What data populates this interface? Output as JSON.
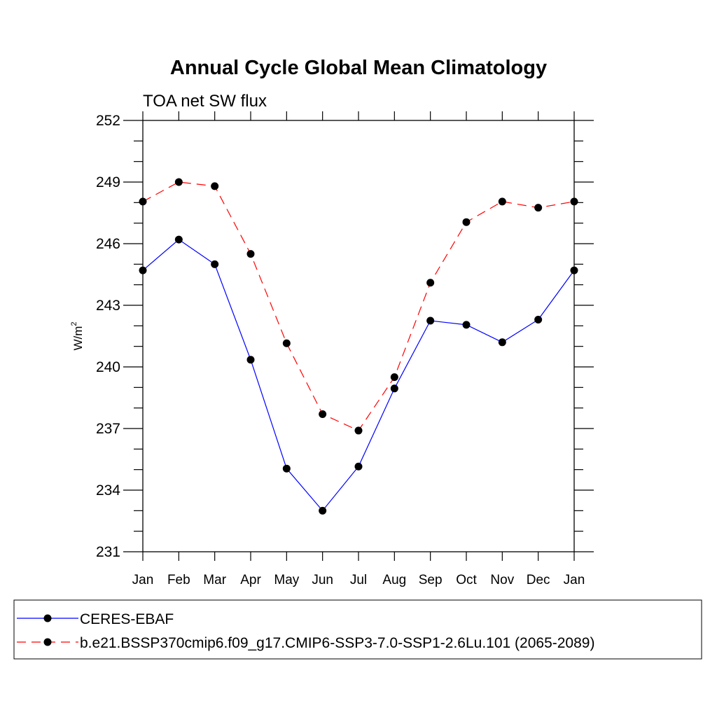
{
  "chart_data": {
    "type": "line",
    "title": "Annual Cycle Global Mean Climatology",
    "subtitle": "TOA net SW flux",
    "ylabel_base": "W/m",
    "ylabel_sup": "2",
    "xlabel": "",
    "categories": [
      "Jan",
      "Feb",
      "Mar",
      "Apr",
      "May",
      "Jun",
      "Jul",
      "Aug",
      "Sep",
      "Oct",
      "Nov",
      "Dec",
      "Jan"
    ],
    "ylim": [
      231,
      252
    ],
    "yticks": [
      231,
      234,
      237,
      240,
      243,
      246,
      249,
      252
    ],
    "series": [
      {
        "name": "CERES-EBAF",
        "color": "#0000ff",
        "dash": "solid",
        "values": [
          244.7,
          246.2,
          245.0,
          240.35,
          235.05,
          233.0,
          235.15,
          238.95,
          242.25,
          242.05,
          241.2,
          242.3,
          244.7
        ]
      },
      {
        "name": "b.e21.BSSP370cmip6.f09_g17.CMIP6-SSP3-7.0-SSP1-2.6Lu.101 (2065-2089)",
        "color": "#ff0000",
        "dash": "dashed",
        "values": [
          248.05,
          249.0,
          248.8,
          245.5,
          241.15,
          237.7,
          236.9,
          239.5,
          244.1,
          247.05,
          248.05,
          247.75,
          248.05
        ]
      }
    ],
    "legend_position": "bottom",
    "grid": false
  }
}
